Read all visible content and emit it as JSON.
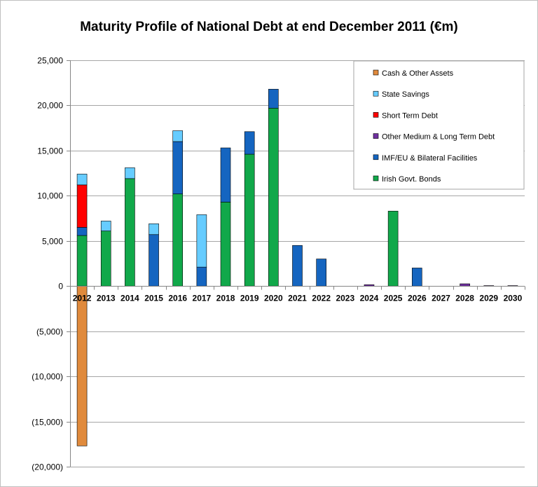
{
  "chart_data": {
    "type": "bar",
    "stacked": true,
    "title": "Maturity Profile of National  Debt at end December 2011 (€m)",
    "xlabel": "",
    "ylabel": "",
    "ylim": [
      -20000,
      25000
    ],
    "yticks": [
      25000,
      20000,
      15000,
      10000,
      5000,
      0,
      -5000,
      -10000,
      -15000,
      -20000
    ],
    "ytick_labels": [
      "25,000",
      "20,000",
      "15,000",
      "10,000",
      "5,000",
      "0",
      "(5,000)",
      "(10,000)",
      "(15,000)",
      "(20,000)"
    ],
    "grid": true,
    "legend_position": "top-right",
    "categories": [
      "2012",
      "2013",
      "2014",
      "2015",
      "2016",
      "2017",
      "2018",
      "2019",
      "2020",
      "2021",
      "2022",
      "2023",
      "2024",
      "2025",
      "2026",
      "2027",
      "2028",
      "2029",
      "2030"
    ],
    "series": [
      {
        "name": "Irish Govt. Bonds",
        "color": "#11a84a",
        "values": [
          5600,
          6100,
          11900,
          0,
          10200,
          0,
          9300,
          14600,
          19700,
          0,
          0,
          0,
          0,
          8300,
          0,
          0,
          0,
          0,
          0
        ]
      },
      {
        "name": "IMF/EU & Bilateral Facilities",
        "color": "#1565c0",
        "values": [
          900,
          0,
          0,
          5700,
          5800,
          2100,
          6000,
          2500,
          2100,
          4500,
          3000,
          0,
          0,
          0,
          2000,
          0,
          0,
          0,
          0
        ]
      },
      {
        "name": "Other Medium & Long Term Debt",
        "color": "#7030a0",
        "values": [
          0,
          0,
          0,
          0,
          0,
          0,
          0,
          0,
          0,
          0,
          0,
          0,
          150,
          0,
          0,
          0,
          250,
          50,
          50
        ]
      },
      {
        "name": "Short Term Debt",
        "color": "#ff0000",
        "values": [
          4700,
          0,
          0,
          0,
          0,
          0,
          0,
          0,
          0,
          0,
          0,
          0,
          0,
          0,
          0,
          0,
          0,
          0,
          0
        ]
      },
      {
        "name": "State Savings",
        "color": "#66ccff",
        "values": [
          1200,
          1100,
          1200,
          1200,
          1200,
          5800,
          0,
          0,
          0,
          0,
          0,
          0,
          0,
          0,
          0,
          0,
          0,
          0,
          0
        ]
      },
      {
        "name": "Cash & Other Assets",
        "color": "#e08a3c",
        "values": [
          -17700,
          0,
          0,
          0,
          0,
          0,
          0,
          0,
          0,
          0,
          0,
          0,
          0,
          0,
          0,
          0,
          0,
          0,
          0
        ]
      }
    ],
    "legend_order": [
      "Cash & Other Assets",
      "State Savings",
      "Short Term Debt",
      "Other Medium & Long Term Debt",
      "IMF/EU & Bilateral Facilities",
      "Irish Govt. Bonds"
    ]
  }
}
